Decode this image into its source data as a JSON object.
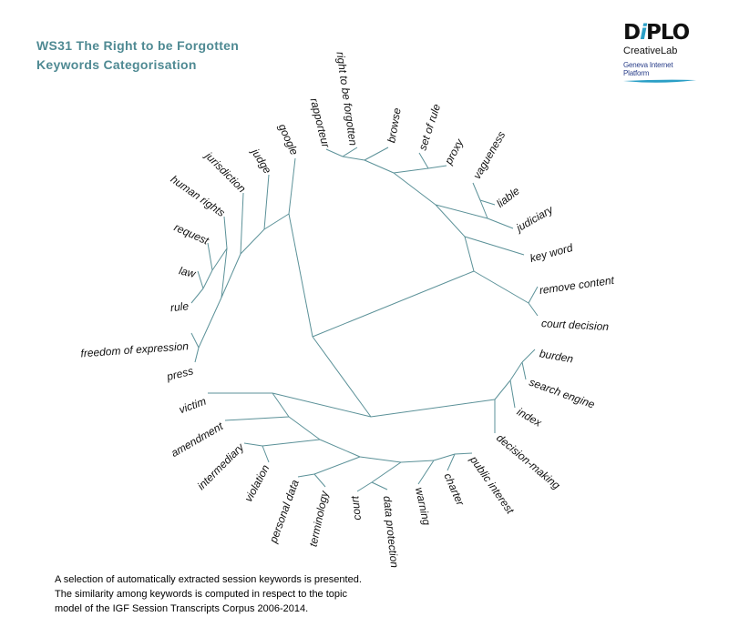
{
  "title": {
    "line1": "WS31 The Right  to be Forgotten",
    "line2": "Keywords Categorisation"
  },
  "logo": {
    "brand": "DiPLO",
    "sub": "CreativeLab",
    "sub2": "Geneva Internet Platform"
  },
  "colors": {
    "title": "#4f8a93",
    "branch": "#5b9198",
    "logo_accent": "#2a9fc6"
  },
  "keywords": [
    "remove content",
    "court decision",
    "key word",
    "judiciary",
    "liable",
    "vagueness",
    "proxy",
    "set of rule",
    "browse",
    "right to be forgotten",
    "rapporteur",
    "google",
    "judge",
    "jurisdiction",
    "human rights",
    "request",
    "law",
    "rule",
    "freedom of expression",
    "press",
    "victim",
    "amendment",
    "intermediary",
    "violation",
    "personal data",
    "terminology",
    "court",
    "data protection",
    "warning",
    "charter",
    "public interest",
    "decision-making",
    "index",
    "search engine",
    "burden"
  ],
  "footer": {
    "line1": "A selection of automatically extracted session keywords is presented.",
    "line2": "The similarity among keywords is computed in respect to the topic",
    "line3": "model of the IGF Session Transcripts Corpus 2006-2014."
  }
}
